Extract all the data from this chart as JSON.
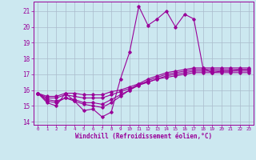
{
  "xlabel": "Windchill (Refroidissement éolien,°C)",
  "background_color": "#cce8f0",
  "grid_color": "#aabbcc",
  "line_color": "#990099",
  "xlim": [
    -0.5,
    23.5
  ],
  "ylim": [
    13.8,
    21.6
  ],
  "xticks": [
    0,
    1,
    2,
    3,
    4,
    5,
    6,
    7,
    8,
    9,
    10,
    11,
    12,
    13,
    14,
    15,
    16,
    17,
    18,
    19,
    20,
    21,
    22,
    23
  ],
  "yticks": [
    14,
    15,
    16,
    17,
    18,
    19,
    20,
    21
  ],
  "series": [
    [
      15.8,
      15.2,
      15.0,
      15.8,
      15.3,
      14.7,
      14.8,
      14.3,
      14.6,
      16.7,
      18.4,
      21.3,
      20.1,
      20.5,
      21.0,
      20.0,
      20.8,
      20.5,
      17.4,
      17.1,
      17.2,
      17.2,
      17.3,
      17.3
    ],
    [
      15.8,
      15.3,
      15.2,
      15.5,
      15.3,
      15.1,
      15.0,
      14.9,
      15.2,
      15.6,
      16.0,
      16.4,
      16.7,
      16.9,
      17.1,
      17.2,
      17.3,
      17.4,
      17.4,
      17.4,
      17.4,
      17.4,
      17.4,
      17.4
    ],
    [
      15.8,
      15.4,
      15.3,
      15.5,
      15.4,
      15.2,
      15.2,
      15.1,
      15.4,
      15.7,
      16.0,
      16.3,
      16.6,
      16.8,
      17.0,
      17.1,
      17.2,
      17.3,
      17.3,
      17.3,
      17.3,
      17.3,
      17.3,
      17.3
    ],
    [
      15.8,
      15.5,
      15.5,
      15.7,
      15.6,
      15.5,
      15.5,
      15.5,
      15.7,
      15.9,
      16.1,
      16.3,
      16.5,
      16.7,
      16.9,
      17.0,
      17.1,
      17.2,
      17.2,
      17.2,
      17.2,
      17.2,
      17.2,
      17.2
    ],
    [
      15.8,
      15.6,
      15.6,
      15.8,
      15.8,
      15.7,
      15.7,
      15.7,
      15.9,
      16.0,
      16.2,
      16.4,
      16.5,
      16.7,
      16.8,
      16.9,
      17.0,
      17.1,
      17.1,
      17.1,
      17.1,
      17.1,
      17.1,
      17.1
    ]
  ]
}
